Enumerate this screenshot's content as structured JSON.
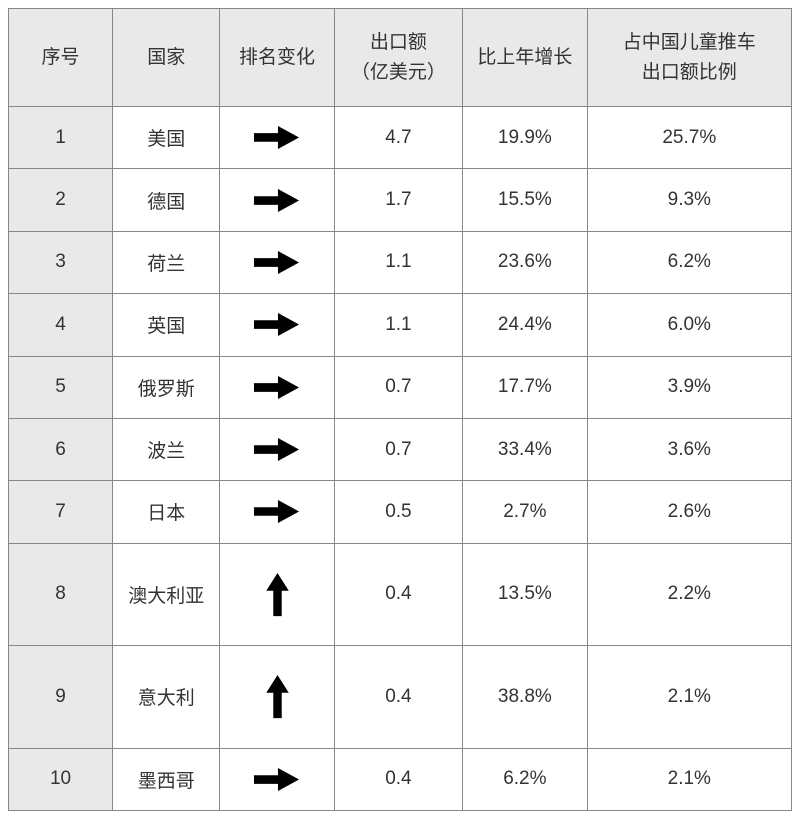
{
  "colors": {
    "arrow": "#2b2e8c",
    "shade_bg": "#e9e9e9",
    "border": "#878787",
    "text": "#333333"
  },
  "table": {
    "headers": [
      {
        "lines": [
          "序号"
        ]
      },
      {
        "lines": [
          "国家"
        ]
      },
      {
        "lines": [
          "排名变化"
        ]
      },
      {
        "lines": [
          "出口额",
          "（亿美元）"
        ]
      },
      {
        "lines": [
          "比上年增长"
        ]
      },
      {
        "lines": [
          "占中国儿童推车",
          "出口额比例"
        ]
      }
    ],
    "rows": [
      {
        "no": "1",
        "country": "美国",
        "rank_change": "right",
        "export_value": "4.7",
        "yoy_growth": "19.9%",
        "share": "25.7%"
      },
      {
        "no": "2",
        "country": "德国",
        "rank_change": "right",
        "export_value": "1.7",
        "yoy_growth": "15.5%",
        "share": "9.3%"
      },
      {
        "no": "3",
        "country": "荷兰",
        "rank_change": "right",
        "export_value": "1.1",
        "yoy_growth": "23.6%",
        "share": "6.2%"
      },
      {
        "no": "4",
        "country": "英国",
        "rank_change": "right",
        "export_value": "1.1",
        "yoy_growth": "24.4%",
        "share": "6.0%"
      },
      {
        "no": "5",
        "country": "俄罗斯",
        "rank_change": "right",
        "export_value": "0.7",
        "yoy_growth": "17.7%",
        "share": "3.9%"
      },
      {
        "no": "6",
        "country": "波兰",
        "rank_change": "right",
        "export_value": "0.7",
        "yoy_growth": "33.4%",
        "share": "3.6%"
      },
      {
        "no": "7",
        "country": "日本",
        "rank_change": "right",
        "export_value": "0.5",
        "yoy_growth": "2.7%",
        "share": "2.6%"
      },
      {
        "no": "8",
        "country": "澳大利亚",
        "rank_change": "up",
        "export_value": "0.4",
        "yoy_growth": "13.5%",
        "share": "2.2%"
      },
      {
        "no": "9",
        "country": "意大利",
        "rank_change": "up",
        "export_value": "0.4",
        "yoy_growth": "38.8%",
        "share": "2.1%"
      },
      {
        "no": "10",
        "country": "墨西哥",
        "rank_change": "right",
        "export_value": "0.4",
        "yoy_growth": "6.2%",
        "share": "2.1%"
      }
    ]
  },
  "chart_data": {
    "type": "table",
    "columns": [
      "序号",
      "国家",
      "排名变化",
      "出口额（亿美元）",
      "比上年增长",
      "占中国儿童推车出口额比例"
    ],
    "rows": [
      [
        "1",
        "美国",
        "→",
        "4.7",
        "19.9%",
        "25.7%"
      ],
      [
        "2",
        "德国",
        "→",
        "1.7",
        "15.5%",
        "9.3%"
      ],
      [
        "3",
        "荷兰",
        "→",
        "1.1",
        "23.6%",
        "6.2%"
      ],
      [
        "4",
        "英国",
        "→",
        "1.1",
        "24.4%",
        "6.0%"
      ],
      [
        "5",
        "俄罗斯",
        "→",
        "0.7",
        "17.7%",
        "3.9%"
      ],
      [
        "6",
        "波兰",
        "→",
        "0.7",
        "33.4%",
        "3.6%"
      ],
      [
        "7",
        "日本",
        "→",
        "0.5",
        "2.7%",
        "2.6%"
      ],
      [
        "8",
        "澳大利亚",
        "↑",
        "0.4",
        "13.5%",
        "2.2%"
      ],
      [
        "9",
        "意大利",
        "↑",
        "0.4",
        "38.8%",
        "2.1%"
      ],
      [
        "10",
        "墨西哥",
        "→",
        "0.4",
        "6.2%",
        "2.1%"
      ]
    ]
  }
}
